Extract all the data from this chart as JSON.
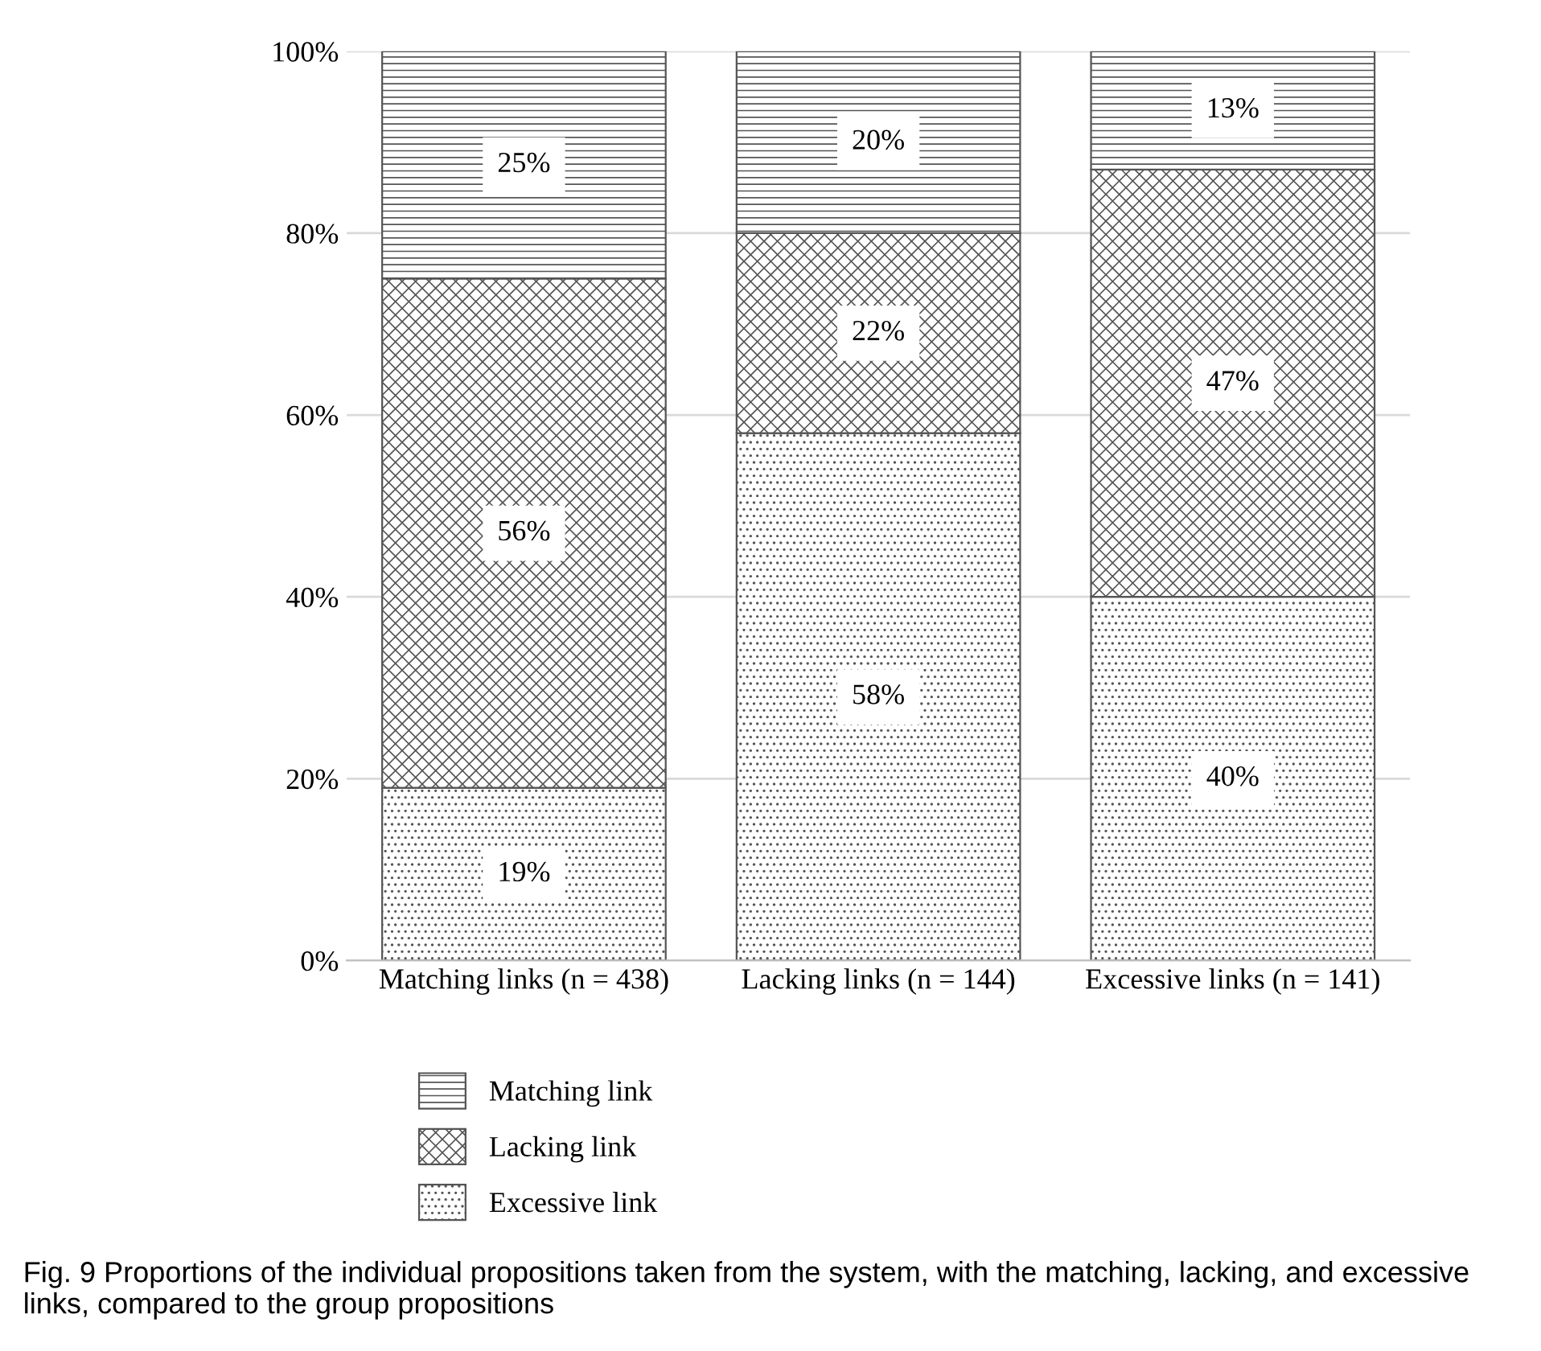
{
  "chart_data": {
    "type": "bar",
    "stacked": true,
    "categories": [
      "Matching links (n = 438)",
      "Lacking links (n = 144)",
      "Excessive links (n = 141)"
    ],
    "series": [
      {
        "name": "Excessive link",
        "color": "#555555",
        "values": [
          19,
          58,
          40
        ],
        "value_labels": [
          "19%",
          "58%",
          "40%"
        ]
      },
      {
        "name": "Lacking link",
        "color": "#555555",
        "values": [
          56,
          22,
          47
        ],
        "value_labels": [
          "56%",
          "22%",
          "47%"
        ]
      },
      {
        "name": "Matching link",
        "color": "#555555",
        "values": [
          25,
          20,
          13
        ],
        "value_labels": [
          "25%",
          "20%",
          "13%"
        ]
      }
    ],
    "ylim": [
      0,
      100
    ],
    "yticks": [
      {
        "value": 0,
        "label": "0%"
      },
      {
        "value": 20,
        "label": "20%"
      },
      {
        "value": 40,
        "label": "40%"
      },
      {
        "value": 60,
        "label": "60%"
      },
      {
        "value": 80,
        "label": "80%"
      },
      {
        "value": 100,
        "label": "100%"
      }
    ],
    "grid": "y",
    "legend": "bottom left",
    "annotations": [
      "Fig. 9 Proportions of the individual propositions taken from the system, with the matching, lacking, and excessive links, compared to the group propositions"
    ]
  }
}
